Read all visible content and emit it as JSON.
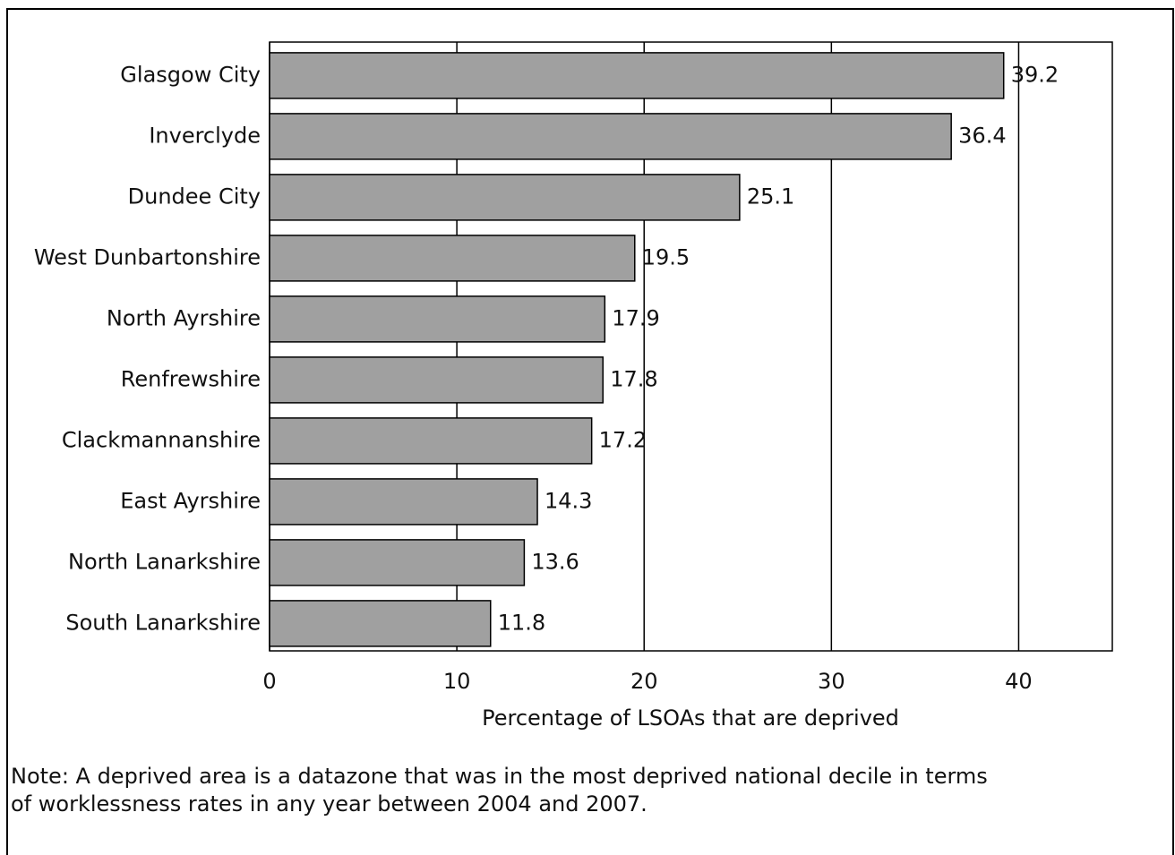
{
  "chart_data": {
    "type": "bar",
    "orientation": "horizontal",
    "categories": [
      "Glasgow City",
      "Inverclyde",
      "Dundee City",
      "West Dunbartonshire",
      "North Ayrshire",
      "Renfrewshire",
      "Clackmannanshire",
      "East Ayrshire",
      "North Lanarkshire",
      "South Lanarkshire"
    ],
    "values": [
      39.2,
      36.4,
      25.1,
      19.5,
      17.9,
      17.8,
      17.2,
      14.3,
      13.6,
      11.8
    ],
    "color": "#a0a0a0",
    "xlim": [
      0,
      45
    ],
    "xticks": [
      0,
      10,
      20,
      30,
      40
    ],
    "grid": true,
    "xlabel": "Percentage of LSOAs that are deprived",
    "note": [
      "Note: A deprived area is a datazone that was in the most deprived national decile in terms",
      "of worklessness rates in any year between 2004 and 2007."
    ]
  }
}
